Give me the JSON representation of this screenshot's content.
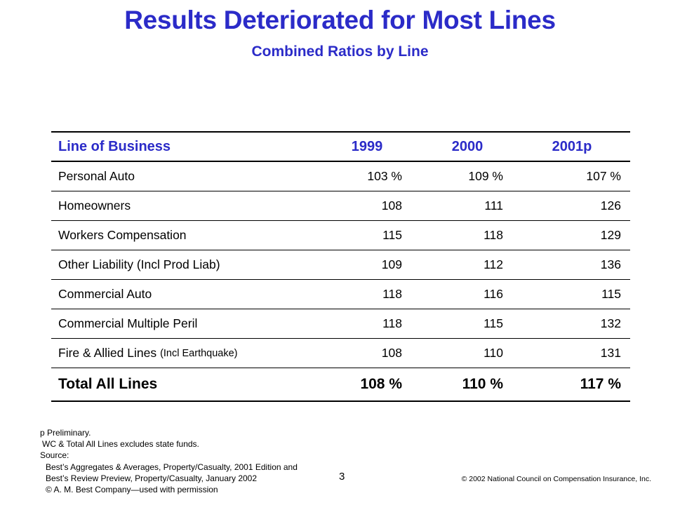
{
  "title": "Results Deteriorated for Most Lines",
  "subtitle": "Combined Ratios by Line",
  "table": {
    "headers": [
      "Line of Business",
      "1999",
      "2000",
      "2001p"
    ],
    "rows": [
      {
        "line": "Personal Auto",
        "line_note": "",
        "v1999": "103 %",
        "v2000": "109 %",
        "v2001": "107 %"
      },
      {
        "line": "Homeowners",
        "line_note": "",
        "v1999": "108",
        "v2000": "111",
        "v2001": "126"
      },
      {
        "line": "Workers Compensation",
        "line_note": "",
        "v1999": "115",
        "v2000": "118",
        "v2001": "129"
      },
      {
        "line": "Other Liability (Incl Prod Liab)",
        "line_note": "",
        "v1999": "109",
        "v2000": "112",
        "v2001": "136"
      },
      {
        "line": "Commercial Auto",
        "line_note": "",
        "v1999": "118",
        "v2000": "116",
        "v2001": "115"
      },
      {
        "line": "Commercial Multiple Peril",
        "line_note": "",
        "v1999": "118",
        "v2000": "115",
        "v2001": "132"
      },
      {
        "line": "Fire & Allied Lines",
        "line_note": "(Incl Earthquake)",
        "v1999": "108",
        "v2000": "110",
        "v2001": "131"
      }
    ],
    "total": {
      "line": "Total All Lines",
      "v1999": "108 %",
      "v2000": "110 %",
      "v2001": "117 %"
    }
  },
  "footnotes": {
    "preliminary": "p Preliminary.",
    "wc_note": "WC & Total All Lines excludes state funds.",
    "source_label": "Source:",
    "sources": [
      "Best’s Aggregates & Averages, Property/Casualty, 2001 Edition and",
      "Best’s Review Preview, Property/Casualty, January 2002",
      "© A. M. Best Company—used with permission"
    ]
  },
  "page_number": "3",
  "copyright": "© 2002 National Council on Compensation Insurance, Inc.",
  "colors": {
    "title": "#2b2bc8",
    "text": "#000000",
    "background": "#ffffff"
  }
}
